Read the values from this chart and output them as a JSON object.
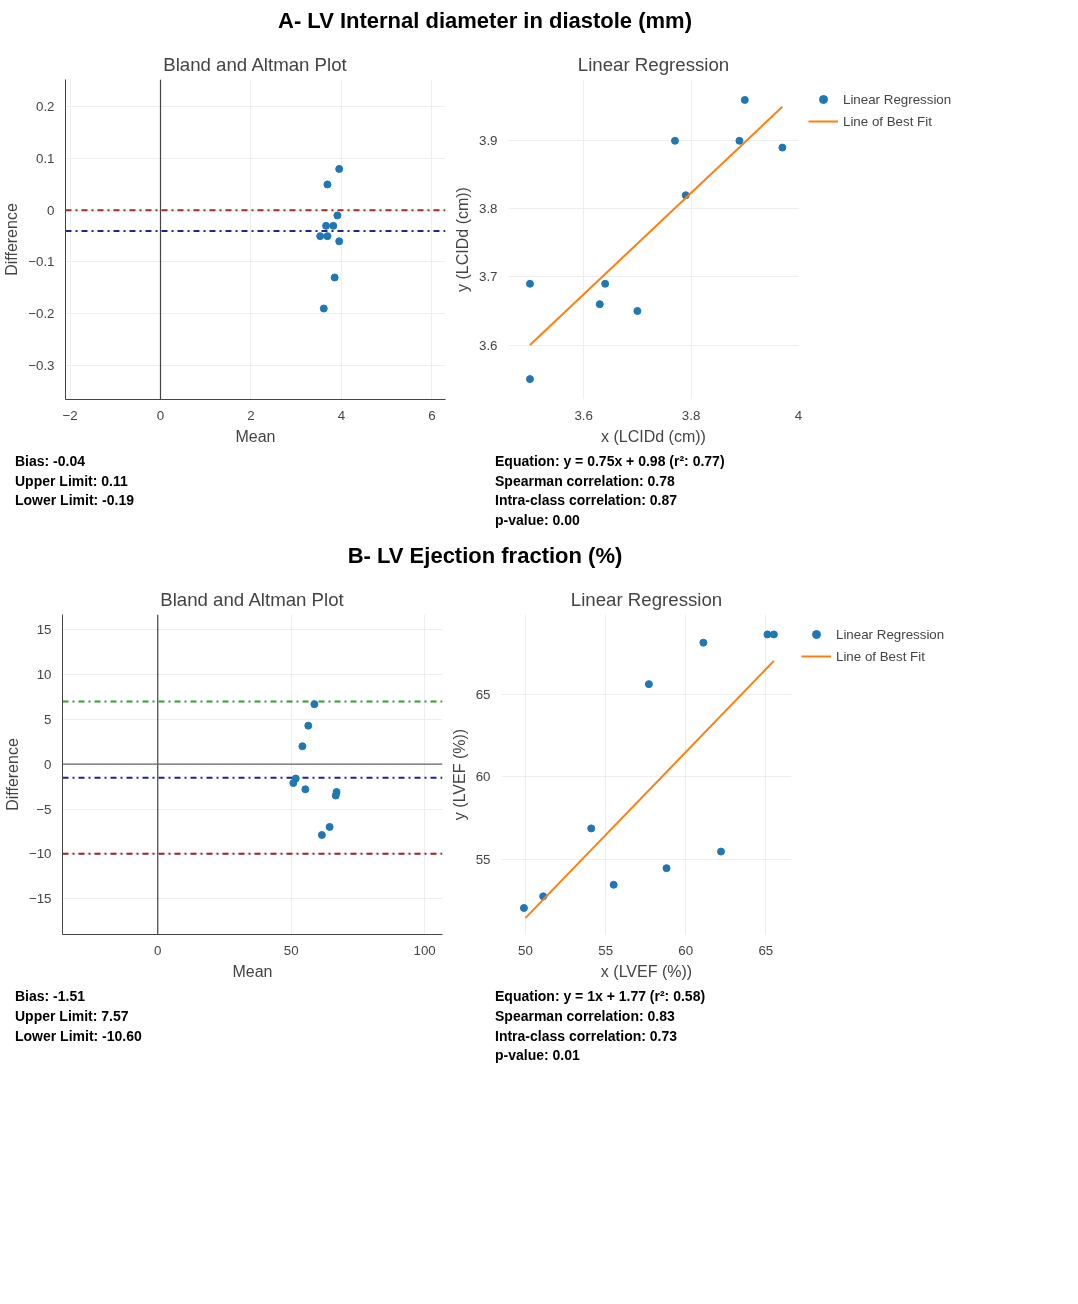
{
  "chart_data": [
    {
      "type": "scatter",
      "title": "Bland and Altman Plot",
      "xlabel": "Mean",
      "ylabel": "Difference",
      "xlim": [
        -2.1,
        6.3
      ],
      "xticks": [
        -2,
        0,
        2,
        4,
        6
      ],
      "ylim": [
        -0.366,
        0.253
      ],
      "yticks": [
        -0.3,
        -0.2,
        -0.1,
        0,
        0.1,
        0.2
      ],
      "grid": true,
      "marker": "circle",
      "annotations": [
        "A- LV Internal diameter in diastole (mm)",
        "Bias: -0.04",
        "Upper Limit: 0.11",
        "Lower Limit: -0.19"
      ],
      "ref_lines": [
        {
          "axis": "x",
          "value": 0,
          "color": "#444444",
          "line_style": "solid"
        },
        {
          "axis": "y",
          "value": 0,
          "color": "#9b2d1f",
          "line_style": "dashdot"
        },
        {
          "axis": "y",
          "value": -0.04,
          "color": "#1f1fa0",
          "line_style": "dashdot"
        }
      ],
      "series": [
        {
          "color": "#1f77b4",
          "x": [
            3.95,
            3.69,
            3.91,
            3.66,
            3.82,
            3.53,
            3.69,
            3.95,
            3.85,
            3.61
          ],
          "values": [
            0.08,
            0.05,
            -0.01,
            -0.03,
            -0.03,
            -0.05,
            -0.05,
            -0.06,
            -0.13,
            -0.19
          ]
        }
      ]
    },
    {
      "type": "scatter",
      "title": "Linear Regression",
      "xlabel": "x (LCIDd (cm))",
      "ylabel": "y (LCIDd (cm))",
      "xlim": [
        3.46,
        4.0
      ],
      "xticks": [
        3.6,
        3.8,
        4
      ],
      "ylim": [
        3.52,
        3.99
      ],
      "yticks": [
        3.6,
        3.7,
        3.8,
        3.9
      ],
      "grid": true,
      "marker": "circle",
      "legend": "top right",
      "annotations": [
        "Equation: y = 0.75x + 0.98 (r²: 0.77)",
        "Spearman correlation: 0.78",
        "Intra-class correlation: 0.87",
        "p-value: 0.00"
      ],
      "series": [
        {
          "name": "Linear Regression",
          "color": "#1f77b4",
          "x": [
            3.5,
            3.5,
            3.63,
            3.64,
            3.7,
            3.77,
            3.79,
            3.89,
            3.9,
            3.97
          ],
          "values": [
            3.55,
            3.69,
            3.66,
            3.69,
            3.65,
            3.9,
            3.82,
            3.9,
            3.96,
            3.89
          ]
        },
        {
          "type": "line",
          "name": "Line of Best Fit",
          "marker": "none",
          "color": "#ff7f0e",
          "x": [
            3.5,
            3.97
          ],
          "values": [
            3.6,
            3.95
          ]
        }
      ]
    },
    {
      "type": "scatter",
      "title": "Bland and Altman Plot",
      "xlabel": "Mean",
      "ylabel": "Difference",
      "xlim": [
        -35.7,
        106.7
      ],
      "xticks": [
        0,
        50,
        100
      ],
      "ylim": [
        -19,
        16.7
      ],
      "yticks": [
        -15,
        -10,
        -5,
        0,
        5,
        10,
        15
      ],
      "grid": true,
      "marker": "circle",
      "annotations": [
        "B- LV Ejection fraction (%)",
        "Bias: -1.51",
        "Upper Limit: 7.57",
        "Lower Limit: -10.60"
      ],
      "ref_lines": [
        {
          "axis": "x",
          "value": 0,
          "color": "#444444",
          "line_style": "solid"
        },
        {
          "axis": "y",
          "value": 0,
          "color": "#666666",
          "line_style": "solid"
        },
        {
          "axis": "y",
          "value": 7,
          "color": "#2ca02c",
          "line_style": "dashdot"
        },
        {
          "axis": "y",
          "value": -1.5,
          "color": "#1f1fa0",
          "line_style": "dashdot"
        },
        {
          "axis": "y",
          "value": -10,
          "color": "#a01f1f",
          "line_style": "dashdot"
        }
      ],
      "series": [
        {
          "color": "#1f77b4",
          "x": [
            58.7,
            56.4,
            54.2,
            51.7,
            50.8,
            55.3,
            67.0,
            66.7,
            64.4,
            61.5
          ],
          "values": [
            6.7,
            4.3,
            2.0,
            -1.6,
            -2.1,
            -2.8,
            -3.1,
            -3.5,
            -7.0,
            -7.9
          ]
        }
      ]
    },
    {
      "type": "scatter",
      "title": "Linear Regression",
      "xlabel": "x (LVEF (%))",
      "ylabel": "y (LVEF (%))",
      "xlim": [
        48.5,
        66.6
      ],
      "xticks": [
        50,
        55,
        60,
        65
      ],
      "ylim": [
        50.5,
        69.8
      ],
      "yticks": [
        55,
        60,
        65
      ],
      "grid": true,
      "marker": "circle",
      "legend": "top right",
      "annotations": [
        "Equation: y = 1x + 1.77 (r²: 0.58)",
        "Spearman correlation: 0.83",
        "Intra-class correlation: 0.73",
        "p-value: 0.01"
      ],
      "series": [
        {
          "name": "Linear Regression",
          "color": "#1f77b4",
          "x": [
            49.9,
            51.1,
            54.1,
            55.5,
            57.7,
            58.8,
            61.1,
            62.2,
            65.1,
            65.5
          ],
          "values": [
            52.1,
            52.8,
            56.9,
            53.5,
            65.6,
            54.5,
            68.1,
            55.5,
            68.6,
            68.6
          ]
        },
        {
          "type": "line",
          "name": "Line of Best Fit",
          "marker": "none",
          "color": "#ff7f0e",
          "x": [
            50.0,
            65.5
          ],
          "values": [
            51.5,
            67.0
          ]
        }
      ]
    }
  ]
}
